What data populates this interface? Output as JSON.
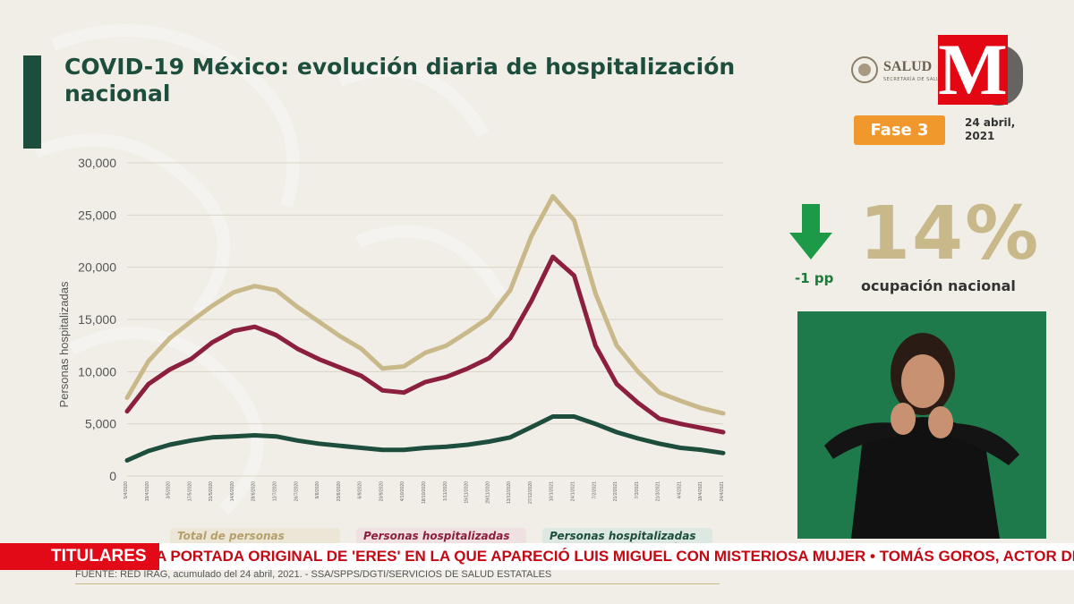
{
  "header": {
    "title": "COVID-19 México: evolución diaria de hospitalización nacional"
  },
  "logos": {
    "salud": "SALUD",
    "salud_sub": "SECRETARÍA DE SALUD",
    "broadcaster": "M"
  },
  "status": {
    "phase": "Fase 3",
    "date": "24 abril, 2021",
    "change": "-1 pp",
    "occupancy_value": "14%",
    "occupancy_label": "ocupación nacional",
    "arrow_icon": "arrow-down-icon"
  },
  "legend": {
    "total": "Total de personas hospitalizadas",
    "general": "Personas hospitalizadas en camas generales",
    "ventilation": "Personas hospitalizadas con ventilación mecánica"
  },
  "source": "FUENTE: RED IRAG, acumulado del 24 abril, 2021. - SSA/SPPS/DGTI/SERVICIOS DE SALUD ESTATALES",
  "ticker": {
    "label": "TITULARES",
    "text": "A PORTADA ORIGINAL DE 'ERES' EN LA QUE APARECIÓ LUIS MIGUEL CON MISTERIOSA MUJER  •  TOMÁS GOROS, ACTOR DE 'E"
  },
  "colors": {
    "total": "#c9b98a",
    "general": "#8b1f3d",
    "ventilation": "#1d4d3c",
    "phase": "#f0982b",
    "arrow": "#1d9a47",
    "ticker": "#e20a17"
  },
  "chart_data": {
    "type": "line",
    "ylabel": "Personas hospitalizadas",
    "ylim": [
      0,
      30000
    ],
    "yticks": [
      "0",
      "5,000",
      "10,000",
      "15,000",
      "20,000",
      "25,000",
      "30,000"
    ],
    "grid": true,
    "x": [
      "2020-04-05",
      "2020-04-19",
      "2020-05-03",
      "2020-05-17",
      "2020-05-31",
      "2020-06-14",
      "2020-06-28",
      "2020-07-12",
      "2020-07-26",
      "2020-08-09",
      "2020-08-23",
      "2020-09-06",
      "2020-09-20",
      "2020-10-04",
      "2020-10-18",
      "2020-11-01",
      "2020-11-15",
      "2020-11-29",
      "2020-12-13",
      "2020-12-27",
      "2021-01-10",
      "2021-01-24",
      "2021-02-07",
      "2021-02-21",
      "2021-03-07",
      "2021-03-21",
      "2021-04-04",
      "2021-04-18",
      "2021-04-24"
    ],
    "series": [
      {
        "name": "Total de personas hospitalizadas",
        "color": "#c9b98a",
        "values": [
          7500,
          11000,
          13200,
          14800,
          16300,
          17600,
          18200,
          17800,
          16200,
          14800,
          13400,
          12200,
          10300,
          10500,
          11800,
          12500,
          13800,
          15200,
          17800,
          23000,
          26800,
          24500,
          17500,
          12500,
          10000,
          8000,
          7200,
          6500,
          6000
        ]
      },
      {
        "name": "Personas hospitalizadas en camas generales",
        "color": "#8b1f3d",
        "values": [
          6200,
          8800,
          10200,
          11200,
          12800,
          13900,
          14300,
          13500,
          12200,
          11200,
          10400,
          9600,
          8200,
          8000,
          9000,
          9500,
          10300,
          11300,
          13200,
          16800,
          21000,
          19200,
          12500,
          8800,
          7000,
          5500,
          5000,
          4600,
          4200
        ]
      },
      {
        "name": "Personas hospitalizadas con ventilación mecánica",
        "color": "#1d4d3c",
        "values": [
          1500,
          2400,
          3000,
          3400,
          3700,
          3800,
          3900,
          3800,
          3400,
          3100,
          2900,
          2700,
          2500,
          2500,
          2700,
          2800,
          3000,
          3300,
          3700,
          4700,
          5700,
          5700,
          5000,
          4200,
          3600,
          3100,
          2700,
          2500,
          2200
        ]
      }
    ]
  }
}
